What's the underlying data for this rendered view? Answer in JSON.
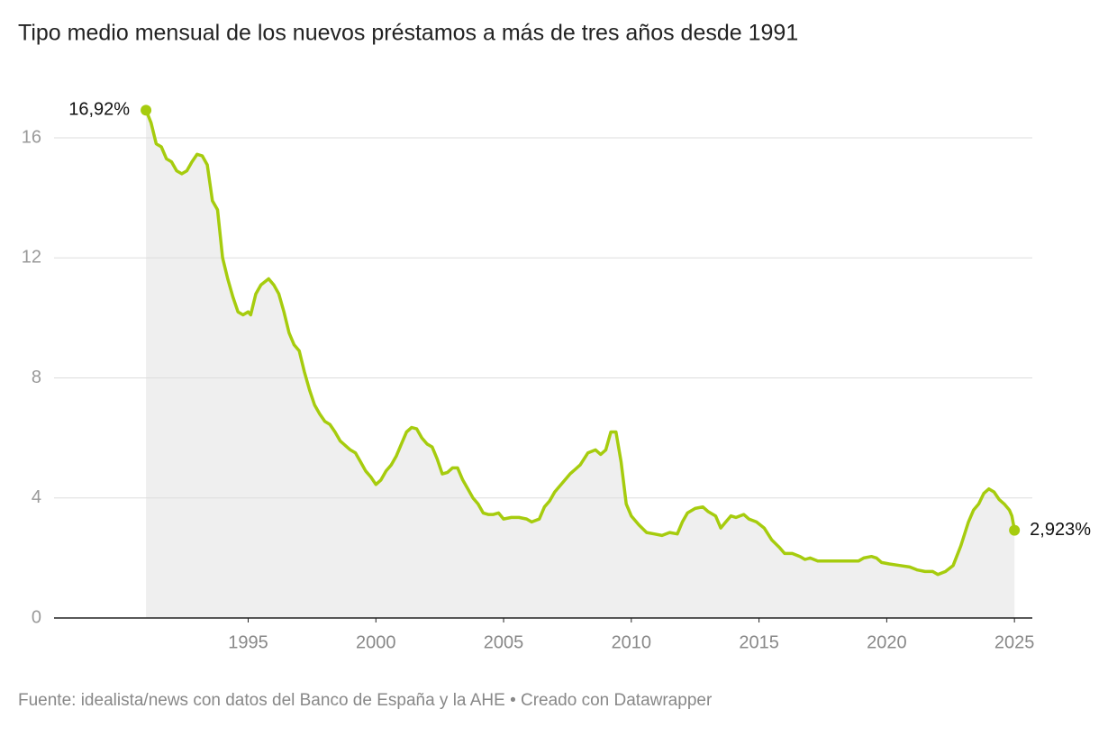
{
  "chart_data": {
    "type": "area-line",
    "title": "Tipo medio mensual de los nuevos préstamos a más de tres años desde 1991",
    "source": "Fuente: idealista/news con datos del Banco de España y la AHE • Creado con Datawrapper",
    "xlim": [
      1987.4,
      2025.7
    ],
    "xticks": [
      1995,
      2000,
      2005,
      2010,
      2015,
      2020,
      2025
    ],
    "ylim": [
      0,
      17.5
    ],
    "yticks": [
      0,
      4,
      8,
      12,
      16
    ],
    "grid": true,
    "color": "#a6cc0e",
    "area_color": "#efefef",
    "endpoint_labels": {
      "first": "16,92%",
      "last": "2,923%"
    },
    "x": [
      1991.0,
      1991.2,
      1991.4,
      1991.6,
      1991.8,
      1992.0,
      1992.2,
      1992.4,
      1992.6,
      1992.8,
      1993.0,
      1993.2,
      1993.4,
      1993.6,
      1993.8,
      1994.0,
      1994.2,
      1994.4,
      1994.6,
      1994.8,
      1995.0,
      1995.1,
      1995.3,
      1995.5,
      1995.8,
      1996.0,
      1996.2,
      1996.4,
      1996.6,
      1996.8,
      1997.0,
      1997.2,
      1997.4,
      1997.6,
      1997.8,
      1998.0,
      1998.2,
      1998.4,
      1998.6,
      1998.8,
      1999.0,
      1999.2,
      1999.4,
      1999.6,
      1999.8,
      2000.0,
      2000.2,
      2000.4,
      2000.6,
      2000.8,
      2001.0,
      2001.2,
      2001.4,
      2001.6,
      2001.8,
      2002.0,
      2002.2,
      2002.4,
      2002.6,
      2002.8,
      2003.0,
      2003.2,
      2003.4,
      2003.6,
      2003.8,
      2004.0,
      2004.2,
      2004.4,
      2004.6,
      2004.8,
      2005.0,
      2005.3,
      2005.6,
      2005.9,
      2006.1,
      2006.4,
      2006.6,
      2006.8,
      2007.0,
      2007.3,
      2007.6,
      2008.0,
      2008.3,
      2008.6,
      2008.8,
      2009.0,
      2009.2,
      2009.4,
      2009.6,
      2009.8,
      2010.0,
      2010.3,
      2010.6,
      2010.9,
      2011.2,
      2011.5,
      2011.8,
      2012.0,
      2012.2,
      2012.5,
      2012.8,
      2013.0,
      2013.3,
      2013.5,
      2013.7,
      2013.9,
      2014.1,
      2014.4,
      2014.6,
      2014.9,
      2015.2,
      2015.5,
      2015.8,
      2016.0,
      2016.3,
      2016.6,
      2016.8,
      2017.0,
      2017.3,
      2017.6,
      2018.0,
      2018.5,
      2018.9,
      2019.1,
      2019.4,
      2019.6,
      2019.8,
      2020.1,
      2020.5,
      2020.9,
      2021.2,
      2021.5,
      2021.8,
      2022.0,
      2022.3,
      2022.6,
      2022.9,
      2023.2,
      2023.4,
      2023.6,
      2023.8,
      2024.0,
      2024.2,
      2024.4,
      2024.6,
      2024.8,
      2024.9,
      2025.0
    ],
    "values": [
      16.92,
      16.5,
      15.8,
      15.7,
      15.3,
      15.2,
      14.9,
      14.8,
      14.9,
      15.2,
      15.45,
      15.4,
      15.1,
      13.9,
      13.6,
      12.0,
      11.3,
      10.7,
      10.2,
      10.1,
      10.2,
      10.1,
      10.8,
      11.1,
      11.3,
      11.1,
      10.8,
      10.2,
      9.5,
      9.1,
      8.9,
      8.2,
      7.6,
      7.1,
      6.8,
      6.55,
      6.45,
      6.2,
      5.9,
      5.75,
      5.6,
      5.5,
      5.2,
      4.9,
      4.7,
      4.45,
      4.6,
      4.9,
      5.1,
      5.4,
      5.8,
      6.2,
      6.35,
      6.3,
      6.0,
      5.8,
      5.7,
      5.3,
      4.8,
      4.85,
      5.0,
      5.0,
      4.6,
      4.3,
      4.0,
      3.8,
      3.5,
      3.45,
      3.45,
      3.5,
      3.3,
      3.35,
      3.35,
      3.3,
      3.2,
      3.3,
      3.7,
      3.9,
      4.2,
      4.5,
      4.8,
      5.1,
      5.5,
      5.6,
      5.45,
      5.6,
      6.2,
      6.2,
      5.2,
      3.8,
      3.4,
      3.1,
      2.85,
      2.8,
      2.75,
      2.85,
      2.8,
      3.2,
      3.5,
      3.65,
      3.7,
      3.55,
      3.4,
      3.0,
      3.2,
      3.4,
      3.35,
      3.45,
      3.3,
      3.2,
      3.0,
      2.6,
      2.35,
      2.15,
      2.15,
      2.05,
      1.95,
      2.0,
      1.9,
      1.9,
      1.9,
      1.9,
      1.9,
      2.0,
      2.05,
      2.0,
      1.85,
      1.8,
      1.75,
      1.7,
      1.6,
      1.55,
      1.55,
      1.45,
      1.55,
      1.75,
      2.4,
      3.2,
      3.6,
      3.8,
      4.15,
      4.3,
      4.2,
      3.95,
      3.8,
      3.6,
      3.4,
      2.923
    ]
  }
}
